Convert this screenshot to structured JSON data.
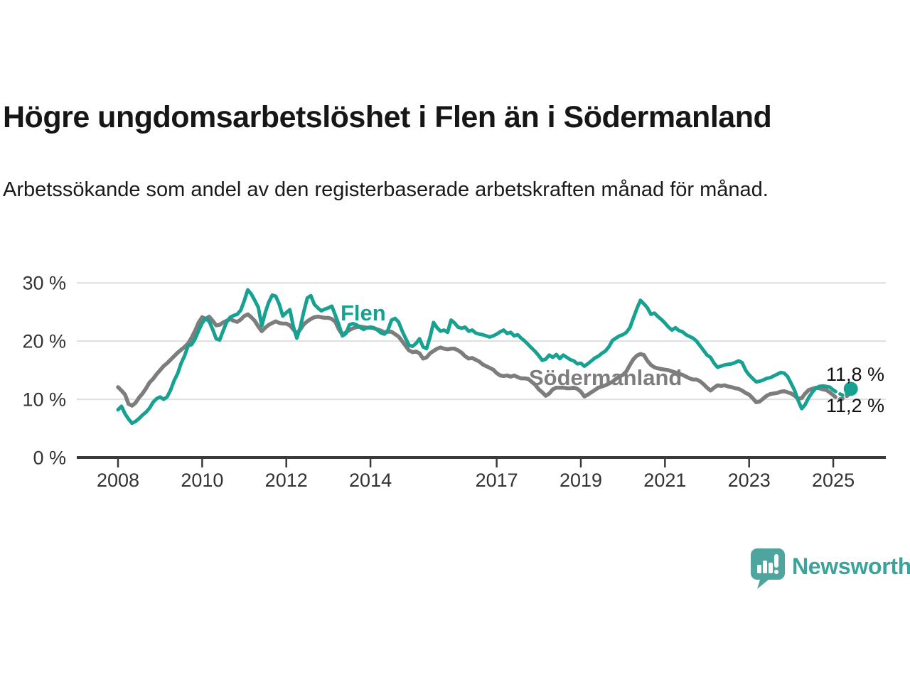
{
  "header": {
    "title": "Högre ungdomsarbetslöshet i Flen än i Södermanland",
    "subtitle": "Arbetssökande som andel av den registerbaserade arbetskraften månad för månad."
  },
  "footer": {
    "brand": "Newsworthy",
    "logo_icon": "speech-bubble-bar-chart-icon"
  },
  "colors": {
    "flen_line": "#16a191",
    "sodermanland_line": "#7d7d7d",
    "grid": "#dedede",
    "axis": "#3a3a3a",
    "tick_text": "#333333",
    "value_label_text": "#111111",
    "logo_teal": "#4da59d",
    "logo_text_teal": "#3aa39a"
  },
  "chart_data": {
    "type": "line",
    "title": "Högre ungdomsarbetslöshet i Flen än i Södermanland",
    "xlabel": "",
    "ylabel": "",
    "x_start": 2008.0,
    "x_step": 0.0833333,
    "x_ticks": [
      2008,
      2010,
      2012,
      2014,
      2017,
      2019,
      2021,
      2023,
      2025
    ],
    "y_ticks": [
      0,
      10,
      20,
      30
    ],
    "y_tick_suffix": " %",
    "ylim": [
      0,
      31
    ],
    "grid": true,
    "legend_position": "inline-labels",
    "dashed_tail_points": 6,
    "series": [
      {
        "name": "Södermanland",
        "end_label": "11,2 %",
        "end_dot": false,
        "values": [
          12.1,
          11.5,
          10.8,
          9.2,
          8.9,
          9.4,
          10.3,
          11.0,
          11.9,
          12.9,
          13.5,
          14.3,
          15.0,
          15.7,
          16.2,
          16.8,
          17.4,
          18.0,
          18.5,
          19.0,
          19.6,
          20.6,
          21.8,
          23.2,
          24.1,
          23.8,
          24.2,
          23.5,
          22.7,
          22.8,
          23.2,
          23.5,
          23.8,
          23.5,
          23.3,
          23.7,
          24.3,
          24.6,
          24.1,
          23.5,
          22.5,
          21.7,
          22.3,
          22.8,
          23.1,
          23.4,
          23.1,
          23.0,
          23.0,
          22.7,
          22.0,
          21.3,
          22.0,
          22.9,
          23.4,
          23.8,
          24.1,
          24.2,
          24.1,
          24.0,
          24.0,
          23.8,
          23.3,
          22.0,
          21.1,
          21.5,
          21.9,
          22.2,
          22.4,
          22.5,
          22.4,
          22.3,
          22.3,
          22.2,
          22.0,
          21.8,
          21.5,
          21.6,
          21.6,
          21.2,
          20.8,
          20.0,
          19.2,
          18.4,
          18.1,
          18.2,
          17.9,
          17.0,
          17.2,
          17.9,
          18.3,
          18.7,
          18.9,
          18.7,
          18.6,
          18.7,
          18.7,
          18.4,
          18.0,
          17.4,
          17.0,
          17.1,
          16.8,
          16.5,
          16.0,
          15.7,
          15.4,
          15.1,
          14.5,
          14.1,
          14.0,
          14.1,
          13.9,
          14.1,
          13.8,
          13.6,
          13.6,
          13.5,
          13.0,
          12.5,
          11.7,
          11.2,
          10.6,
          11.0,
          11.7,
          12.0,
          12.0,
          12.0,
          11.9,
          11.9,
          12.0,
          11.8,
          11.3,
          10.5,
          10.8,
          11.2,
          11.6,
          12.0,
          12.2,
          12.4,
          12.7,
          13.0,
          13.5,
          13.9,
          14.2,
          14.8,
          15.9,
          16.9,
          17.5,
          17.8,
          17.6,
          16.6,
          15.9,
          15.5,
          15.3,
          15.2,
          15.1,
          15.0,
          14.8,
          14.6,
          14.4,
          14.2,
          13.9,
          13.6,
          13.4,
          13.4,
          13.1,
          12.6,
          12.0,
          11.5,
          12.0,
          12.4,
          12.3,
          12.4,
          12.2,
          12.1,
          11.9,
          11.8,
          11.5,
          11.1,
          10.8,
          10.2,
          9.5,
          9.6,
          10.1,
          10.6,
          10.9,
          11.0,
          11.1,
          11.3,
          11.4,
          11.2,
          11.0,
          10.6,
          10.1,
          10.2,
          11.0,
          11.6,
          11.8,
          12.0,
          11.9,
          11.7,
          11.6,
          11.2,
          10.7,
          10.2,
          10.0,
          10.2,
          10.6,
          11.2
        ]
      },
      {
        "name": "Flen",
        "end_label": "11,8 %",
        "end_dot": true,
        "values": [
          8.2,
          8.8,
          7.5,
          6.6,
          5.9,
          6.2,
          6.7,
          7.3,
          7.8,
          8.5,
          9.5,
          10.1,
          10.4,
          10.0,
          10.4,
          11.6,
          13.2,
          14.4,
          16.2,
          17.5,
          19.2,
          19.4,
          20.4,
          21.8,
          23.1,
          23.9,
          23.4,
          22.0,
          20.4,
          20.2,
          21.8,
          23.3,
          24.1,
          24.4,
          24.6,
          25.3,
          26.9,
          28.8,
          28.1,
          27.0,
          25.8,
          22.6,
          24.9,
          26.7,
          27.9,
          27.7,
          26.3,
          24.3,
          24.9,
          25.4,
          22.5,
          20.5,
          22.4,
          25.1,
          27.4,
          27.8,
          26.3,
          25.7,
          25.2,
          25.5,
          25.7,
          26.0,
          24.4,
          22.8,
          20.9,
          21.3,
          22.8,
          23.0,
          22.8,
          22.4,
          22.0,
          22.3,
          22.4,
          22.3,
          21.9,
          21.4,
          21.2,
          21.9,
          23.6,
          23.9,
          23.3,
          21.8,
          20.5,
          19.3,
          19.1,
          19.6,
          20.4,
          19.0,
          18.7,
          20.7,
          23.2,
          22.3,
          21.7,
          21.9,
          21.5,
          23.6,
          23.1,
          22.4,
          22.2,
          22.4,
          21.7,
          21.9,
          21.4,
          21.2,
          21.1,
          20.9,
          20.7,
          20.9,
          21.2,
          21.6,
          21.9,
          21.3,
          21.5,
          20.9,
          21.1,
          20.5,
          20.0,
          19.4,
          18.8,
          18.2,
          17.5,
          16.7,
          16.9,
          17.6,
          17.2,
          17.7,
          17.0,
          17.6,
          17.2,
          16.8,
          16.6,
          16.1,
          16.2,
          15.7,
          16.1,
          16.6,
          17.1,
          17.4,
          17.9,
          18.3,
          19.0,
          20.1,
          20.5,
          20.9,
          21.1,
          21.5,
          22.3,
          24.0,
          25.6,
          27.0,
          26.4,
          25.7,
          24.6,
          24.8,
          24.2,
          23.7,
          23.1,
          22.4,
          21.9,
          22.3,
          21.8,
          21.6,
          21.1,
          20.8,
          20.5,
          20.0,
          19.2,
          18.4,
          17.6,
          17.2,
          16.2,
          15.5,
          15.7,
          15.9,
          16.0,
          16.1,
          16.3,
          16.6,
          16.3,
          15.0,
          14.2,
          13.6,
          13.0,
          13.1,
          13.3,
          13.6,
          13.7,
          14.0,
          14.3,
          14.6,
          14.5,
          13.9,
          12.7,
          11.5,
          9.8,
          8.4,
          9.1,
          10.3,
          11.2,
          11.9,
          12.2,
          12.3,
          12.2,
          12.1,
          11.6,
          11.2,
          10.9,
          10.6,
          11.1,
          11.8
        ]
      }
    ]
  }
}
